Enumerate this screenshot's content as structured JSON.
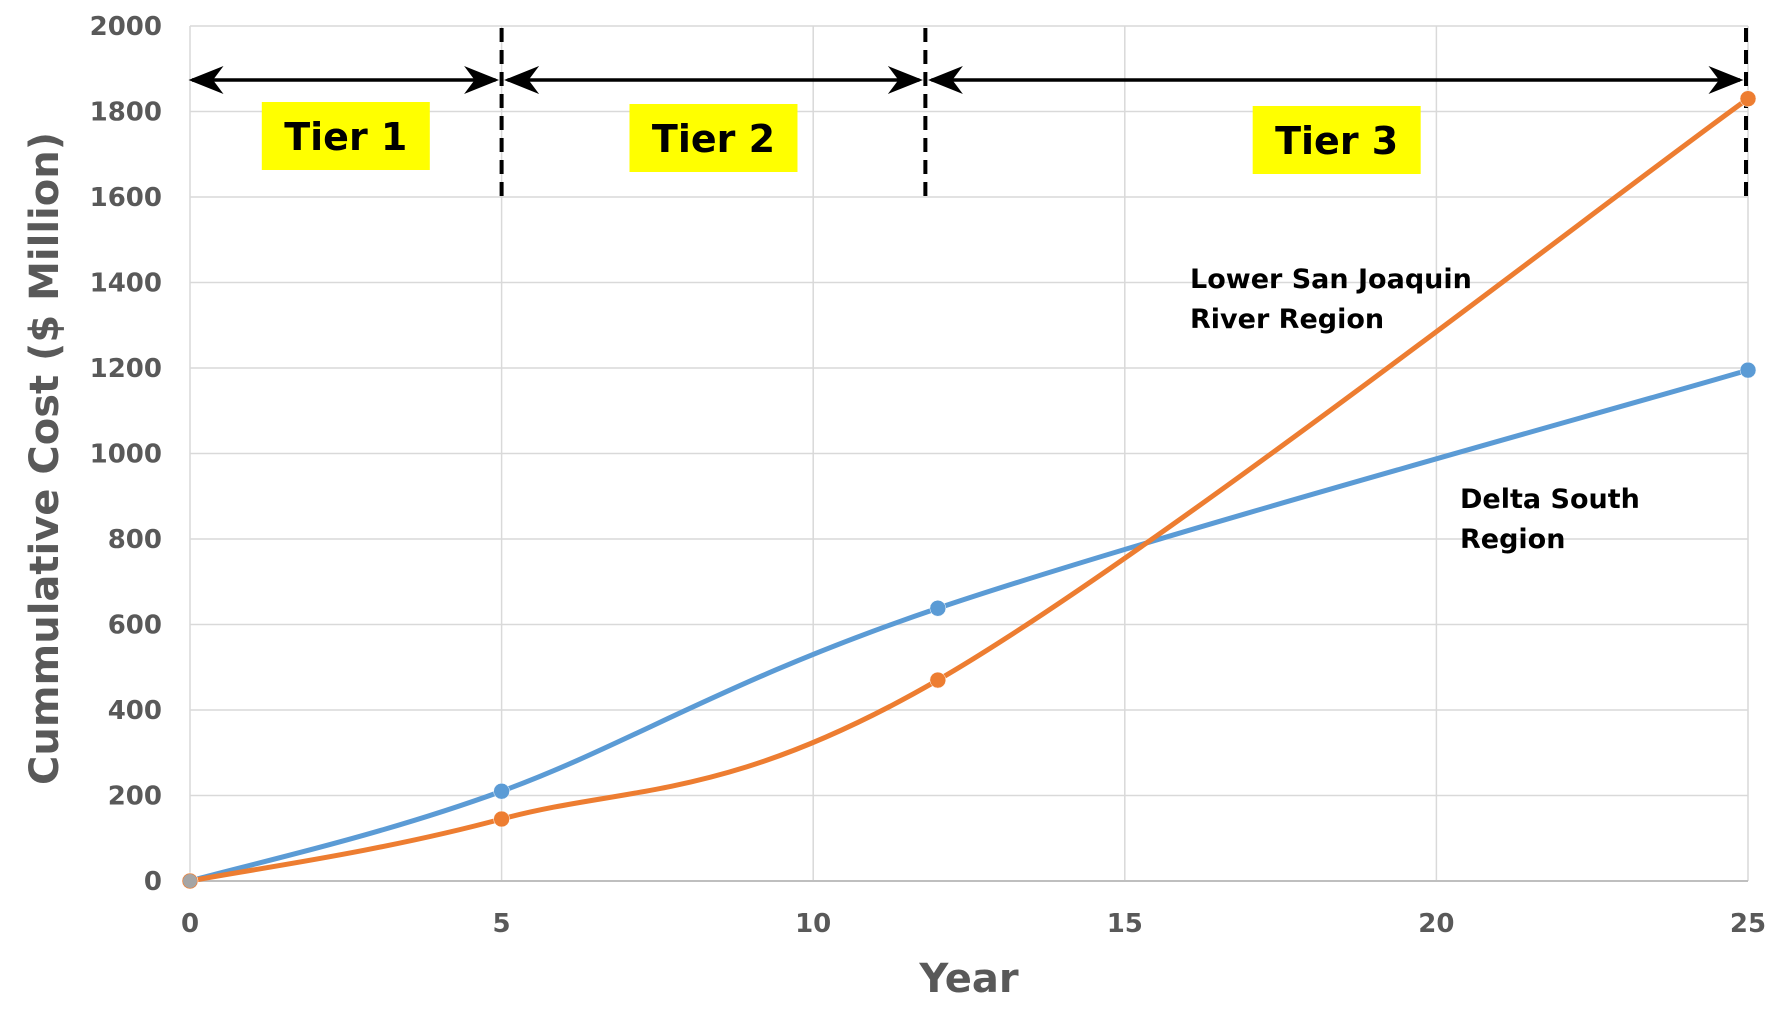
{
  "chart_data": {
    "type": "line",
    "title": "",
    "xlabel": "Year",
    "ylabel": "Cummulative Cost ($ Million)",
    "xlim": [
      0,
      25
    ],
    "ylim": [
      0,
      2000
    ],
    "xticks": [
      0,
      5,
      10,
      15,
      20,
      25
    ],
    "yticks": [
      0,
      200,
      400,
      600,
      800,
      1000,
      1200,
      1400,
      1600,
      1800,
      2000
    ],
    "grid": true,
    "series": [
      {
        "label": "Delta South Region",
        "color": "#5b9bd5",
        "points": [
          {
            "x": 0,
            "y": 0
          },
          {
            "x": 5,
            "y": 210
          },
          {
            "x": 12,
            "y": 638
          },
          {
            "x": 25,
            "y": 1195
          }
        ]
      },
      {
        "label": "Lower San Joaquin River Region",
        "color": "#ed7d31",
        "points": [
          {
            "x": 0,
            "y": 0
          },
          {
            "x": 5,
            "y": 145
          },
          {
            "x": 12,
            "y": 470
          },
          {
            "x": 25,
            "y": 1830
          }
        ]
      }
    ],
    "tiers": [
      {
        "label": "Tier 1",
        "start": 0,
        "end": 5
      },
      {
        "label": "Tier 2",
        "start": 5,
        "end": 11.8
      },
      {
        "label": "Tier 3",
        "start": 11.8,
        "end": 25
      }
    ],
    "annotations": [
      {
        "lines": [
          "Lower San Joaquin",
          "River Region"
        ],
        "series": "Lower San Joaquin River Region"
      },
      {
        "lines": [
          "Delta South",
          "Region"
        ],
        "series": "Delta South Region"
      }
    ],
    "tier_label_bg": "#ffff00"
  }
}
